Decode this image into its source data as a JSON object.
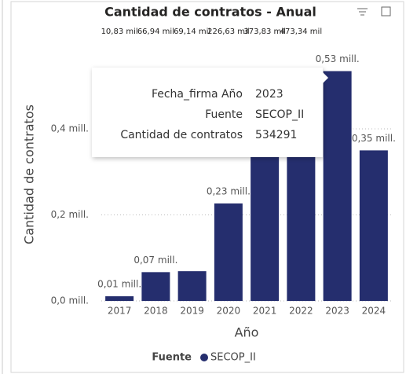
{
  "chart_data": {
    "type": "bar",
    "title": "Cantidad de contratos - Anual",
    "x_label": "Año",
    "y_label": "Cantidad de contratos",
    "categories": [
      "2017",
      "2018",
      "2019",
      "2020",
      "2021",
      "2022",
      "2023",
      "2024"
    ],
    "series": [
      {
        "name": "SECOP_II",
        "color": "#252e6e",
        "values": [
          10830,
          66940,
          69140,
          226630,
          373830,
          473340,
          534291,
          350000
        ],
        "value_labels": [
          "0,01 mill.",
          "0,07 mill.",
          null,
          "0,23 mill.",
          null,
          null,
          "0,53 mill.",
          "0,35 mill."
        ]
      }
    ],
    "annotations": [
      "10,83 mil",
      "66,94 mil",
      "69,14 mil",
      "226,63 mil",
      "373,83 mil",
      "473,34 mil"
    ],
    "legend_title": "Fuente",
    "ylim": [
      0,
      590000
    ],
    "yticks": [
      {
        "value": 0,
        "label": "0,0 mill."
      },
      {
        "value": 200000,
        "label": "0,2 mill."
      },
      {
        "value": 400000,
        "label": "0,4 mill."
      }
    ],
    "grid": true
  },
  "tooltip": {
    "rows": [
      [
        "Fecha_firma Año",
        "2023"
      ],
      [
        "Fuente",
        "SECOP_II"
      ],
      [
        "Cantidad de contratos",
        "534291"
      ]
    ]
  }
}
